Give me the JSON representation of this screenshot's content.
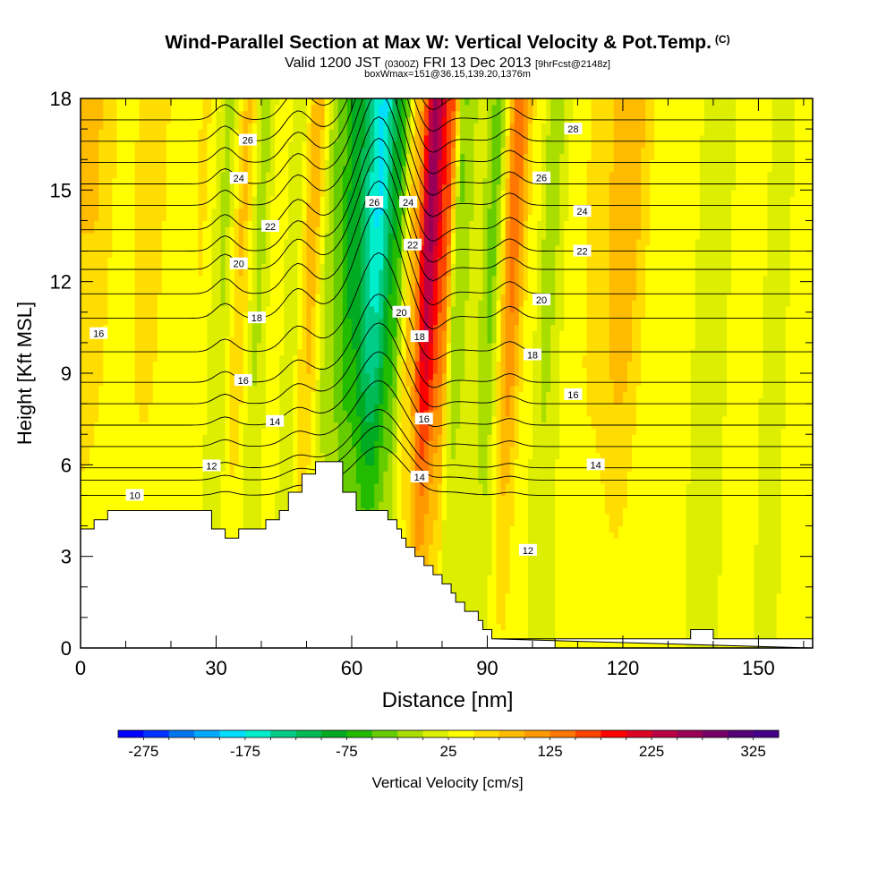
{
  "header": {
    "title": "Wind-Parallel Section at Max W: Vertical Velocity & Pot.Temp.",
    "copyright": "(C)",
    "valid_prefix": "Valid 1200 JST",
    "valid_utc": "(0300Z)",
    "valid_date": "FRI 13 Dec 2013",
    "forecast": "[9hrFcst@2148z]",
    "box_info": "boxWmax=151@36.15,139.20,1376m"
  },
  "chart_data": {
    "type": "heatmap",
    "xlabel": "Distance [nm]",
    "ylabel": "Height [Kft MSL]",
    "xlim": [
      0,
      162
    ],
    "ylim": [
      0,
      18
    ],
    "x_ticks": [
      0,
      30,
      60,
      90,
      120,
      150
    ],
    "y_ticks": [
      0,
      3,
      6,
      9,
      12,
      15,
      18
    ],
    "colorbar": {
      "label": "Vertical Velocity [cm/s]",
      "min": -300,
      "max": 350,
      "step": 25,
      "tick_values": [
        -275,
        -175,
        -75,
        25,
        125,
        225,
        325
      ],
      "colors": [
        "#0000ff",
        "#0033ff",
        "#0077ee",
        "#00aaff",
        "#00ddff",
        "#00eecc",
        "#00cc88",
        "#00bb55",
        "#00aa22",
        "#22bb00",
        "#66cc00",
        "#aadd00",
        "#ddee00",
        "#ffff00",
        "#ffdd00",
        "#ffbb00",
        "#ff9900",
        "#ff7700",
        "#ff4400",
        "#ff0000",
        "#dd0022",
        "#bb0044",
        "#990055",
        "#770066",
        "#550077",
        "#440088"
      ]
    },
    "velocity_bands": [
      {
        "x": 0,
        "w": 1.5
      },
      {
        "x": 6,
        "w": 0.5
      },
      {
        "x": 13,
        "w": 1.2
      },
      {
        "x": 18,
        "w": 0.3
      },
      {
        "x": 24,
        "w": 0.8
      },
      {
        "x": 29,
        "w": -0.9
      },
      {
        "x": 33,
        "w": 1.6
      },
      {
        "x": 37,
        "w": -1.0
      },
      {
        "x": 41,
        "w": 0.6
      },
      {
        "x": 44.5,
        "w": -0.6
      },
      {
        "x": 48.5,
        "w": 2.0
      },
      {
        "x": 53,
        "w": -1.5
      },
      {
        "x": 58,
        "w": -3.5
      },
      {
        "x": 63,
        "w": -6.0
      },
      {
        "x": 67,
        "w": -3.0
      },
      {
        "x": 71,
        "w": 2.0
      },
      {
        "x": 74.5,
        "w": 7.0
      },
      {
        "x": 78,
        "w": 4.0
      },
      {
        "x": 81,
        "w": -1.5
      },
      {
        "x": 85,
        "w": -0.4
      },
      {
        "x": 88.5,
        "w": -1.8
      },
      {
        "x": 93,
        "w": 3.5
      },
      {
        "x": 97,
        "w": 0.6
      },
      {
        "x": 101,
        "w": -1.2
      },
      {
        "x": 106,
        "w": 0.3
      },
      {
        "x": 112,
        "w": 1.2
      },
      {
        "x": 118,
        "w": 2.2
      },
      {
        "x": 124,
        "w": 0.6
      },
      {
        "x": 131,
        "w": 0.2
      },
      {
        "x": 138,
        "w": -0.4
      },
      {
        "x": 145,
        "w": 0.5
      },
      {
        "x": 152,
        "w": -0.3
      },
      {
        "x": 158,
        "w": 0.6
      },
      {
        "x": 162,
        "w": 0.2
      }
    ],
    "terrain": [
      [
        0,
        3.9
      ],
      [
        3,
        3.9
      ],
      [
        3,
        4.2
      ],
      [
        6,
        4.2
      ],
      [
        6,
        4.5
      ],
      [
        29,
        4.5
      ],
      [
        29,
        3.9
      ],
      [
        32,
        3.9
      ],
      [
        32,
        3.6
      ],
      [
        35,
        3.6
      ],
      [
        35,
        3.9
      ],
      [
        41,
        3.9
      ],
      [
        41,
        4.2
      ],
      [
        44,
        4.2
      ],
      [
        44,
        4.5
      ],
      [
        46,
        4.5
      ],
      [
        46,
        5.1
      ],
      [
        49,
        5.1
      ],
      [
        49,
        5.7
      ],
      [
        52,
        5.7
      ],
      [
        52,
        6.1
      ],
      [
        58,
        6.1
      ],
      [
        58,
        5.1
      ],
      [
        61,
        5.1
      ],
      [
        61,
        4.5
      ],
      [
        68,
        4.5
      ],
      [
        68,
        4.2
      ],
      [
        70,
        4.2
      ],
      [
        70,
        3.9
      ],
      [
        71,
        3.9
      ],
      [
        71,
        3.6
      ],
      [
        72,
        3.6
      ],
      [
        72,
        3.3
      ],
      [
        74,
        3.3
      ],
      [
        74,
        3.0
      ],
      [
        76,
        3.0
      ],
      [
        76,
        2.7
      ],
      [
        78,
        2.7
      ],
      [
        78,
        2.4
      ],
      [
        80,
        2.4
      ],
      [
        80,
        2.1
      ],
      [
        82,
        2.1
      ],
      [
        82,
        1.8
      ],
      [
        83,
        1.8
      ],
      [
        83,
        1.5
      ],
      [
        85,
        1.5
      ],
      [
        85,
        1.2
      ],
      [
        88,
        1.2
      ],
      [
        88,
        0.9
      ],
      [
        89,
        0.9
      ],
      [
        89,
        0.6
      ],
      [
        91,
        0.6
      ],
      [
        91,
        0.3
      ],
      [
        105,
        0.3
      ],
      [
        105,
        0.0
      ],
      [
        162,
        0.0
      ],
      [
        162,
        0.3
      ],
      [
        140,
        0.3
      ],
      [
        140,
        0.6
      ],
      [
        135,
        0.6
      ],
      [
        135,
        0.3
      ],
      [
        91,
        0.3
      ]
    ],
    "isentropes": [
      {
        "theta": 10,
        "z0": 5.0,
        "label_x": 12
      },
      {
        "theta": 11,
        "z0": 5.5
      },
      {
        "theta": 12,
        "z0": 5.9,
        "label_x": 29
      },
      {
        "theta": 13,
        "z0": 6.6
      },
      {
        "theta": 14,
        "z0": 7.3,
        "label_x": 43
      },
      {
        "theta": 15,
        "z0": 8.0
      },
      {
        "theta": 16,
        "z0": 8.7,
        "label_x": 36
      },
      {
        "theta": 17,
        "z0": 9.7
      },
      {
        "theta": 18,
        "z0": 10.8,
        "label_x": 39
      },
      {
        "theta": 19,
        "z0": 11.6
      },
      {
        "theta": 20,
        "z0": 12.4,
        "label_x": 35
      },
      {
        "theta": 21,
        "z0": 13.0
      },
      {
        "theta": 22,
        "z0": 13.7,
        "label_x": 42
      },
      {
        "theta": 23,
        "z0": 14.5
      },
      {
        "theta": 24,
        "z0": 15.2,
        "label_x": 35
      },
      {
        "theta": 25,
        "z0": 15.9
      },
      {
        "theta": 26,
        "z0": 16.6,
        "label_x": 37
      },
      {
        "theta": 27,
        "z0": 17.3
      },
      {
        "theta": 28,
        "z0": 18.0
      }
    ],
    "extra_labels": [
      {
        "text": "16",
        "x": 4,
        "z": 10.3
      },
      {
        "text": "26",
        "x": 65,
        "z": 14.6
      },
      {
        "text": "24",
        "x": 72.5,
        "z": 14.6
      },
      {
        "text": "22",
        "x": 73.5,
        "z": 13.2
      },
      {
        "text": "20",
        "x": 71,
        "z": 11.0
      },
      {
        "text": "18",
        "x": 75,
        "z": 10.2
      },
      {
        "text": "16",
        "x": 76,
        "z": 7.5
      },
      {
        "text": "14",
        "x": 75,
        "z": 5.6
      },
      {
        "text": "28",
        "x": 109,
        "z": 17.0
      },
      {
        "text": "26",
        "x": 102,
        "z": 15.4
      },
      {
        "text": "24",
        "x": 111,
        "z": 14.3
      },
      {
        "text": "22",
        "x": 111,
        "z": 13.0
      },
      {
        "text": "20",
        "x": 102,
        "z": 11.4
      },
      {
        "text": "18",
        "x": 100,
        "z": 9.6
      },
      {
        "text": "16",
        "x": 109,
        "z": 8.3
      },
      {
        "text": "14",
        "x": 114,
        "z": 6.0
      },
      {
        "text": "12",
        "x": 99,
        "z": 3.2
      }
    ]
  }
}
